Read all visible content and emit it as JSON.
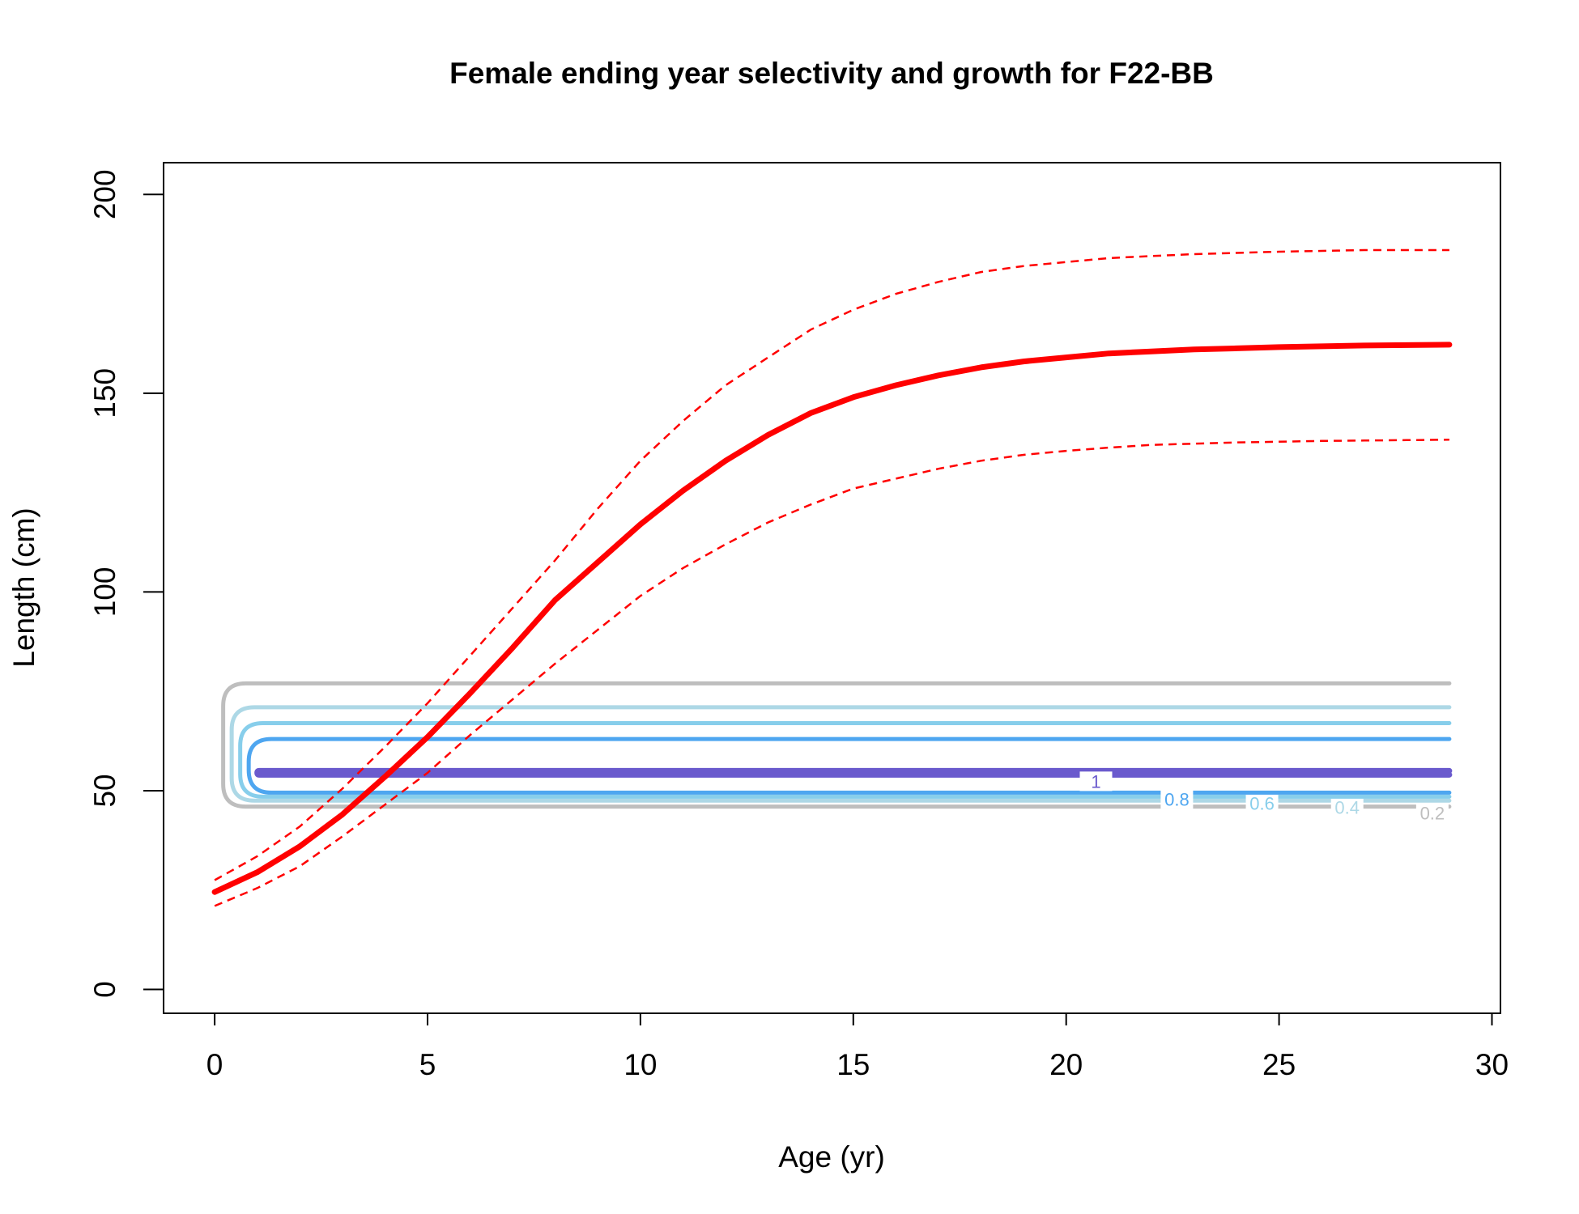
{
  "chart_data": {
    "type": "line",
    "title": "Female ending year selectivity and growth for F22-BB",
    "xlabel": "Age (yr)",
    "ylabel": "Length (cm)",
    "xlim": [
      -1.2,
      30.2
    ],
    "ylim": [
      -6,
      208
    ],
    "xticks": [
      0,
      5,
      10,
      15,
      20,
      25,
      30
    ],
    "yticks": [
      0,
      50,
      100,
      150,
      200
    ],
    "grid": false,
    "legend": "none",
    "growth": {
      "color": "#ff0000",
      "ages": [
        0,
        1,
        2,
        3,
        4,
        5,
        6,
        7,
        8,
        9,
        10,
        11,
        12,
        13,
        14,
        15,
        16,
        17,
        18,
        19,
        20,
        21,
        22,
        23,
        24,
        25,
        26,
        27,
        28,
        29
      ],
      "mean": [
        24.5,
        29.5,
        36,
        44,
        53.5,
        63.5,
        74.5,
        86,
        98,
        107.5,
        117,
        125.5,
        133,
        139.5,
        145,
        149,
        152,
        154.5,
        156.5,
        158,
        159,
        160,
        160.5,
        161,
        161.3,
        161.6,
        161.8,
        162,
        162.1,
        162.2
      ],
      "upper": [
        27.5,
        33.5,
        41,
        50.5,
        61,
        72,
        84,
        96,
        108,
        121,
        133,
        143,
        152,
        159,
        166,
        171,
        175,
        178,
        180.5,
        182,
        183,
        184,
        184.5,
        185,
        185.3,
        185.6,
        185.8,
        186,
        186,
        186
      ],
      "lower": [
        21,
        25.5,
        31,
        38.5,
        46.5,
        54.5,
        64,
        73,
        82,
        90.5,
        99,
        106,
        112,
        117.5,
        122,
        126,
        128.5,
        131,
        133,
        134.5,
        135.5,
        136.3,
        137,
        137.3,
        137.6,
        137.8,
        138,
        138.1,
        138.2,
        138.3
      ]
    },
    "selectivity_contours": [
      {
        "level": "0.2",
        "color": "#bebebe",
        "top": 77,
        "bottom": 46,
        "start_age": 0.2,
        "label_age": 28.6
      },
      {
        "level": "0.4",
        "color": "#add8e6",
        "top": 71,
        "bottom": 47.5,
        "start_age": 0.4,
        "label_age": 26.6
      },
      {
        "level": "0.6",
        "color": "#87ceeb",
        "top": 67,
        "bottom": 48.5,
        "start_age": 0.6,
        "label_age": 24.6
      },
      {
        "level": "0.8",
        "color": "#4ea6f0",
        "top": 63,
        "bottom": 49.5,
        "start_age": 0.8,
        "label_age": 22.6
      },
      {
        "level": "1",
        "color": "#6a5acd",
        "top": 55,
        "bottom": 54,
        "start_age": 1.0,
        "label_age": 20.7
      }
    ]
  }
}
